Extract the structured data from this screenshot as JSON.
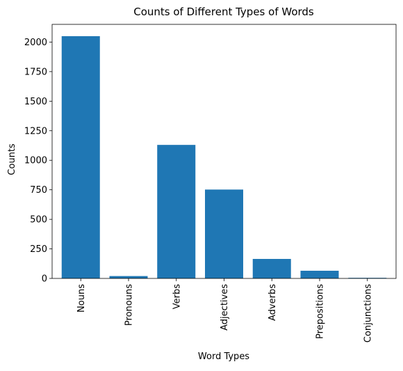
{
  "chart_data": {
    "type": "bar",
    "title": "Counts of Different Types of Words",
    "xlabel": "Word Types",
    "ylabel": "Counts",
    "categories": [
      "Nouns",
      "Pronouns",
      "Verbs",
      "Adjectives",
      "Adverbs",
      "Prepositions",
      "Conjunctions"
    ],
    "values": [
      2050,
      20,
      1130,
      752,
      165,
      65,
      5
    ],
    "ylim": [
      0,
      2150
    ],
    "yticks": [
      0,
      250,
      500,
      750,
      1000,
      1250,
      1500,
      1750,
      2000
    ],
    "bar_color": "#1f77b4",
    "grid": false,
    "legend": "none"
  }
}
